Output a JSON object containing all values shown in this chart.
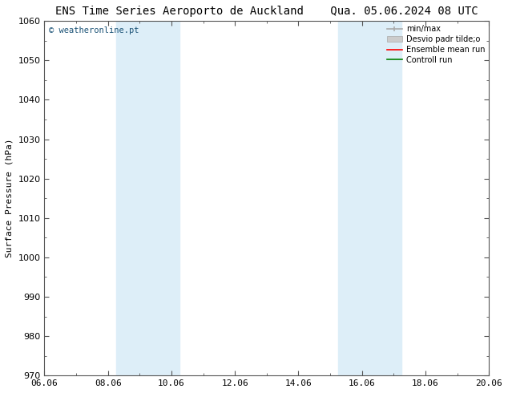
{
  "title_left": "ENS Time Series Aeroporto de Auckland",
  "title_right": "Qua. 05.06.2024 08 UTC",
  "ylabel": "Surface Pressure (hPa)",
  "ylim": [
    970,
    1060
  ],
  "yticks": [
    970,
    980,
    990,
    1000,
    1010,
    1020,
    1030,
    1040,
    1050,
    1060
  ],
  "xlim": [
    0,
    14
  ],
  "xtick_labels": [
    "06.06",
    "08.06",
    "10.06",
    "12.06",
    "14.06",
    "16.06",
    "18.06",
    "20.06"
  ],
  "xtick_positions": [
    0,
    2,
    4,
    6,
    8,
    10,
    12,
    14
  ],
  "shaded_bands": [
    {
      "x_start": 2.25,
      "x_end": 4.25,
      "color": "#ddeef8"
    },
    {
      "x_start": 9.25,
      "x_end": 11.25,
      "color": "#ddeef8"
    }
  ],
  "watermark_text": "© weatheronline.pt",
  "watermark_color": "#1a5276",
  "legend_labels": [
    "min/max",
    "Desvio padr tilde;o",
    "Ensemble mean run",
    "Controll run"
  ],
  "legend_colors": [
    "#aaaaaa",
    "#cccccc",
    "red",
    "green"
  ],
  "bg_color": "#ffffff",
  "plot_bg_color": "#ffffff",
  "title_fontsize": 10,
  "axis_label_fontsize": 8,
  "tick_fontsize": 8
}
